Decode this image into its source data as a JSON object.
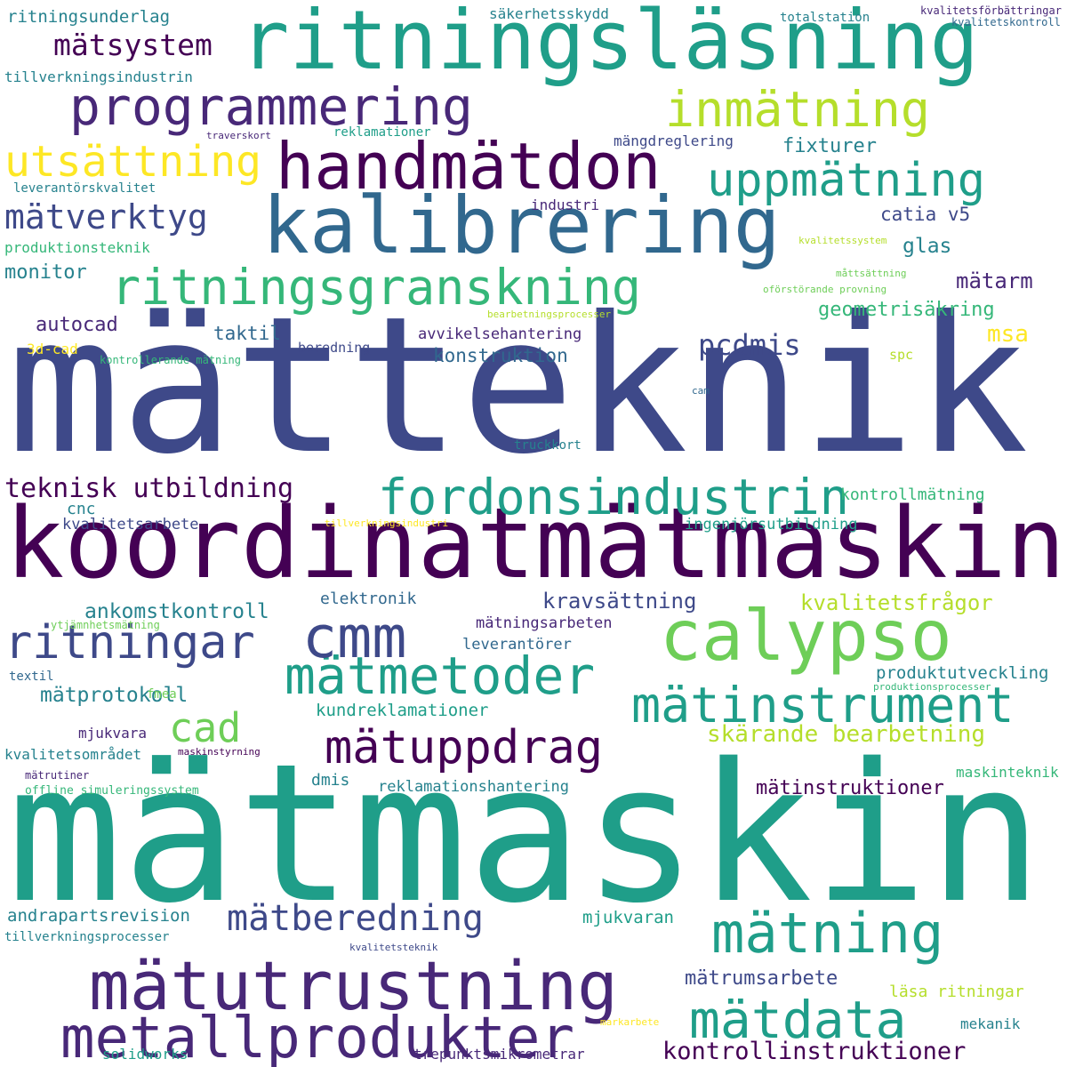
{
  "colors": {
    "background": "#ffffff",
    "palette": [
      "#440154",
      "#482878",
      "#3e4989",
      "#31688e",
      "#26828e",
      "#1f9e89",
      "#35b779",
      "#6ece58",
      "#b5de2b",
      "#fde725"
    ]
  },
  "words": [
    "mätteknik",
    "mätmaskin",
    "koordinatmätmaskin",
    "ritningsläsning",
    "kalibrering",
    "handmätdon",
    "mätutrustning",
    "calypso",
    "metallprodukter",
    "fordonsindustrin",
    "programmering",
    "ritningsgranskning",
    "mätinstrument",
    "mätmetoder",
    "mätning",
    "uppmätning",
    "inmätning",
    "mätuppdrag",
    "cmm",
    "mätdata",
    "utsättning",
    "ritningar",
    "mätverktyg",
    "mätberedning",
    "teknisk utbildning",
    "cad",
    "mätsystem",
    "skärande bearbetning",
    "kontrollinstruktioner",
    "pcdmis",
    "kvalitetsfrågor",
    "mätinstruktioner",
    "geometrisäkring",
    "ankomstkontroll",
    "kravsättning",
    "mätprotokoll",
    "mätrumsarbete",
    "msa",
    "catia v5",
    "fixturer",
    "autocad",
    "taktil",
    "monitor",
    "mätarm",
    "glas",
    "konstruktion",
    "kundreklamationer",
    "produktutveckling",
    "reklamationshantering",
    "mjukvaran",
    "kontrollmätning",
    "ritningsunderlag",
    "andrapartsrevision",
    "avvikelsehantering",
    "elektronik",
    "mätningsarbeten",
    "leverantörer",
    "kvalitetsarbete",
    "ingenjörsutbildning",
    "mekanik",
    "maskinteknik",
    "läsa ritningar",
    "dmis",
    "cnc",
    "produktionsteknik",
    "tillverkningsindustrin",
    "industri",
    "säkerhetsskydd",
    "solidworks",
    "trepunktsmikrometrar",
    "kvalitetsområdet",
    "mjukvara",
    "mängdreglering",
    "totalstation",
    "leverantörskvalitet",
    "reklamationer",
    "tillverkningsprocesser",
    "fmea",
    "textil",
    "3d-cad",
    "spc",
    "beredning",
    "truckkort",
    "offline simuleringssystem",
    "mätrutiner",
    "kvalitetsförbättringar",
    "kvalitetskontroll",
    "traverskort",
    "kvalitetssystem",
    "måttsättning",
    "oförstörande provning",
    "bearbetningsprocesser",
    "kontrollerande mätning",
    "cam",
    "tillverkningsindustri",
    "ytjämnhetsmätning",
    "produktionsprocesser",
    "maskinstyrning",
    "kvalitetsteknik",
    "markarbete"
  ]
}
